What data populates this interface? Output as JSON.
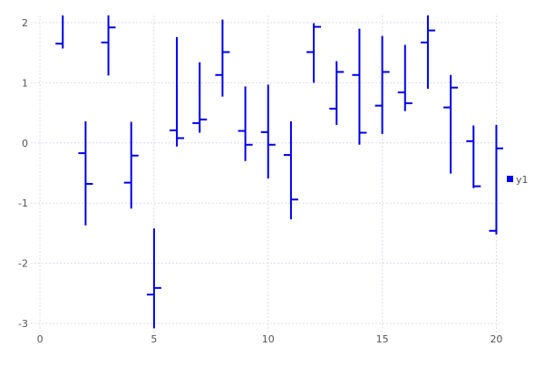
{
  "chart_data": {
    "type": "ohlc",
    "title": "",
    "xlabel": "",
    "ylabel": "",
    "xlim": [
      -0.4,
      20.3
    ],
    "ylim": [
      -3.15,
      2.12
    ],
    "xticks": [
      0,
      5,
      10,
      15,
      20
    ],
    "yticks": [
      -3,
      -2,
      -1,
      0,
      1,
      2
    ],
    "grid": true,
    "legend_placement": "right",
    "color": "#0000ee",
    "series": [
      {
        "name": "y1",
        "x": [
          1,
          2,
          3,
          4,
          5,
          6,
          7,
          8,
          9,
          10,
          11,
          12,
          13,
          14,
          15,
          16,
          17,
          18,
          19,
          20
        ],
        "open": [
          1.65,
          -0.17,
          1.67,
          -0.66,
          -2.52,
          0.21,
          0.33,
          1.13,
          0.2,
          0.18,
          -0.2,
          1.51,
          0.57,
          1.13,
          0.62,
          0.84,
          1.67,
          0.59,
          0.03,
          -1.46
        ],
        "high": [
          2.2,
          0.36,
          2.2,
          0.35,
          -1.42,
          1.76,
          1.34,
          2.05,
          0.94,
          0.97,
          0.36,
          1.99,
          1.36,
          1.9,
          1.78,
          1.63,
          2.12,
          1.13,
          0.29,
          0.3
        ],
        "low": [
          1.57,
          -1.37,
          1.12,
          -1.09,
          -3.08,
          -0.06,
          0.17,
          0.77,
          -0.3,
          -0.59,
          -1.27,
          1.0,
          0.3,
          -0.03,
          0.15,
          0.53,
          0.9,
          -0.51,
          -0.75,
          -1.52
        ],
        "close": [
          2.15,
          -0.68,
          1.92,
          -0.21,
          -2.41,
          0.08,
          0.39,
          1.51,
          -0.03,
          -0.03,
          -0.94,
          1.93,
          1.18,
          0.17,
          1.18,
          0.66,
          1.87,
          0.92,
          -0.72,
          -0.09
        ]
      }
    ]
  }
}
